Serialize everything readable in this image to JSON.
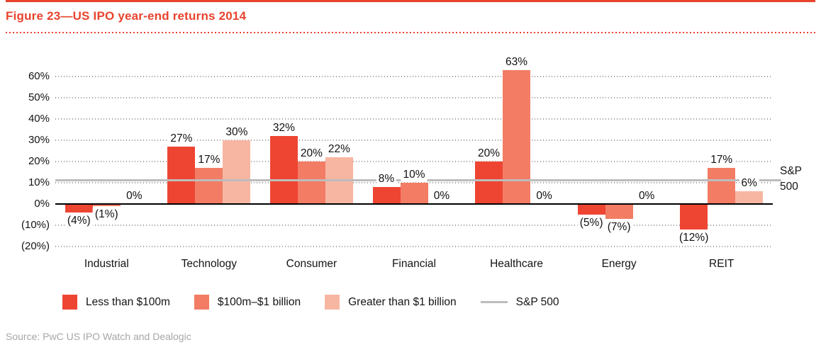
{
  "header": {
    "title": "Figure 23—US IPO year-end returns 2014"
  },
  "chart_data": {
    "type": "bar",
    "title": "Figure 23—US IPO year-end returns 2014",
    "categories": [
      "Industrial",
      "Technology",
      "Consumer",
      "Financial",
      "Healthcare",
      "Energy",
      "REIT"
    ],
    "series": [
      {
        "name": "Less than $100m",
        "color": "#ee4533",
        "values": [
          -4,
          27,
          32,
          8,
          20,
          -5,
          -12
        ],
        "labels": [
          "(4%)",
          "27%",
          "32%",
          "8%",
          "20%",
          "(5%)",
          "(12%)"
        ]
      },
      {
        "name": "$100m–$1 billion",
        "color": "#f27c64",
        "values": [
          -1,
          17,
          20,
          10,
          63,
          -7,
          17
        ],
        "labels": [
          "(1%)",
          "17%",
          "20%",
          "10%",
          "63%",
          "(7%)",
          "17%"
        ]
      },
      {
        "name": "Greater than $1 billion",
        "color": "#f7b6a2",
        "values": [
          0,
          30,
          22,
          0,
          0,
          0,
          6
        ],
        "labels": [
          "0%",
          "30%",
          "22%",
          "0%",
          "0%",
          "0%",
          "6%"
        ]
      }
    ],
    "sp500": {
      "name": "S&P 500",
      "value": 11.4,
      "color": "#bcbcbc",
      "axis_label": "S&P 500"
    },
    "y_axis": {
      "ticks": [
        60,
        50,
        40,
        30,
        20,
        10,
        0,
        -10,
        -20
      ],
      "tick_labels": [
        "60%",
        "50%",
        "40%",
        "30%",
        "20%",
        "10%",
        "0%",
        "(10%)",
        "(20%)"
      ],
      "ylim": [
        -20,
        70
      ]
    },
    "xlabel": "",
    "ylabel": "",
    "grid": "dotted-horizontal",
    "legend_position": "bottom"
  },
  "footer": {
    "source": "Source: PwC US IPO Watch and Dealogic"
  },
  "colors": {
    "accent": "#e8432d",
    "grid_dots": "#9b9b9b",
    "axis": "#000000",
    "source_text": "#a6a6a6"
  }
}
